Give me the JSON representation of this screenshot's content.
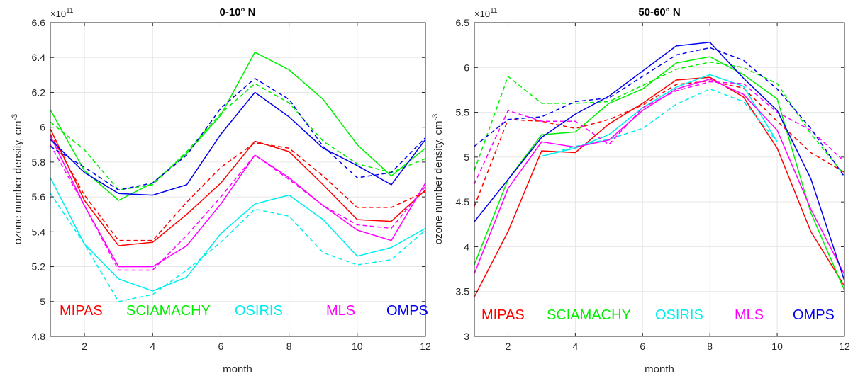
{
  "chart_data": [
    {
      "type": "line",
      "title": "0-10° N",
      "xlabel": "month",
      "ylabel_main": "ozone number density, cm",
      "ylabel_sup": "-3",
      "exponent_base": "×10",
      "exponent_power": "11",
      "xlim": [
        1,
        12
      ],
      "ylim": [
        4.8,
        6.6
      ],
      "xticks": [
        "2",
        "4",
        "6",
        "8",
        "10",
        "12"
      ],
      "yticks": [
        "4.8",
        "5",
        "5.2",
        "5.4",
        "5.6",
        "5.8",
        "6",
        "6.2",
        "6.4",
        "6.6"
      ],
      "grid": true,
      "legend_placement": "bottom",
      "x": [
        1,
        2,
        3,
        4,
        5,
        6,
        7,
        8,
        9,
        10,
        11,
        12
      ],
      "series": [
        {
          "name": "MIPAS",
          "color": "#ff0000",
          "style": "solid",
          "values": [
            5.99,
            5.58,
            5.32,
            5.34,
            5.5,
            5.68,
            5.92,
            5.86,
            5.67,
            5.47,
            5.46,
            5.64
          ]
        },
        {
          "name": "MIPAS",
          "color": "#ff0000",
          "style": "dashed",
          "values": [
            5.96,
            5.61,
            5.35,
            5.35,
            5.57,
            5.77,
            5.91,
            5.88,
            5.72,
            5.54,
            5.54,
            5.63
          ]
        },
        {
          "name": "SCIAMACHY",
          "color": "#00ee00",
          "style": "solid",
          "values": [
            6.1,
            5.75,
            5.58,
            5.68,
            5.85,
            6.07,
            6.43,
            6.33,
            6.16,
            5.9,
            5.72,
            5.88
          ]
        },
        {
          "name": "SCIAMACHY",
          "color": "#00ee00",
          "style": "dashed",
          "values": [
            6.03,
            5.87,
            5.64,
            5.67,
            5.86,
            6.08,
            6.25,
            6.14,
            5.92,
            5.79,
            5.74,
            5.82
          ]
        },
        {
          "name": "OSIRIS",
          "color": "#00eeee",
          "style": "solid",
          "values": [
            5.71,
            5.33,
            5.13,
            5.06,
            5.14,
            5.39,
            5.56,
            5.61,
            5.47,
            5.26,
            5.31,
            5.42
          ]
        },
        {
          "name": "OSIRIS",
          "color": "#00eeee",
          "style": "dashed",
          "values": [
            5.62,
            5.33,
            5.0,
            5.04,
            5.18,
            5.34,
            5.53,
            5.49,
            5.28,
            5.21,
            5.24,
            5.41
          ]
        },
        {
          "name": "MLS",
          "color": "#ff00ff",
          "style": "solid",
          "values": [
            5.95,
            5.55,
            5.2,
            5.2,
            5.32,
            5.56,
            5.84,
            5.71,
            5.55,
            5.41,
            5.35,
            5.68
          ]
        },
        {
          "name": "MLS",
          "color": "#ff00ff",
          "style": "dashed",
          "values": [
            5.9,
            5.55,
            5.18,
            5.18,
            5.38,
            5.6,
            5.84,
            5.7,
            5.55,
            5.44,
            5.42,
            5.66
          ]
        },
        {
          "name": "OMPS",
          "color": "#0000ee",
          "style": "solid",
          "values": [
            5.93,
            5.74,
            5.62,
            5.61,
            5.67,
            5.96,
            6.2,
            6.06,
            5.88,
            5.78,
            5.67,
            5.93
          ]
        },
        {
          "name": "OMPS",
          "color": "#0000ee",
          "style": "dashed",
          "values": [
            5.89,
            5.77,
            5.64,
            5.68,
            5.84,
            6.11,
            6.28,
            6.16,
            5.89,
            5.71,
            5.74,
            5.94
          ]
        }
      ],
      "legend": [
        {
          "label": "MIPAS",
          "color": "#ff0000"
        },
        {
          "label": "SCIAMACHY",
          "color": "#00ee00"
        },
        {
          "label": "OSIRIS",
          "color": "#00eeee"
        },
        {
          "label": "MLS",
          "color": "#ff00ff"
        },
        {
          "label": "OMPS",
          "color": "#0000ee"
        }
      ]
    },
    {
      "type": "line",
      "title": "50-60° N",
      "xlabel": "month",
      "ylabel_main": "ozone number density, cm",
      "ylabel_sup": "-3",
      "exponent_base": "×10",
      "exponent_power": "11",
      "xlim": [
        1,
        12
      ],
      "ylim": [
        3,
        6.5
      ],
      "xticks": [
        "2",
        "4",
        "6",
        "8",
        "10",
        "12"
      ],
      "yticks": [
        "3",
        "3.5",
        "4",
        "4.5",
        "5",
        "5.5",
        "6",
        "6.5"
      ],
      "grid": true,
      "legend_placement": "bottom",
      "x": [
        1,
        2,
        3,
        4,
        5,
        6,
        7,
        8,
        9,
        10,
        11,
        12
      ],
      "series": [
        {
          "name": "MIPAS",
          "color": "#ff0000",
          "style": "solid",
          "values": [
            3.44,
            4.17,
            5.07,
            5.05,
            5.37,
            5.6,
            5.86,
            5.89,
            5.67,
            5.1,
            4.17,
            3.56
          ]
        },
        {
          "name": "MIPAS",
          "color": "#ff0000",
          "style": "dashed",
          "values": [
            4.45,
            5.42,
            5.4,
            5.32,
            5.42,
            5.58,
            5.81,
            5.85,
            5.77,
            5.4,
            5.05,
            4.83
          ]
        },
        {
          "name": "SCIAMACHY",
          "color": "#00ee00",
          "style": "solid",
          "values": [
            3.8,
            4.75,
            5.25,
            5.28,
            5.6,
            5.76,
            6.05,
            6.12,
            5.92,
            5.65,
            4.38,
            3.51
          ]
        },
        {
          "name": "SCIAMACHY",
          "color": "#00ee00",
          "style": "dashed",
          "values": [
            4.85,
            5.9,
            5.6,
            5.6,
            5.62,
            5.8,
            5.98,
            6.06,
            6.0,
            5.82,
            5.26,
            4.8
          ]
        },
        {
          "name": "OSIRIS",
          "color": "#00eeee",
          "style": "solid",
          "values": [
            null,
            null,
            5.01,
            5.1,
            5.25,
            5.55,
            5.78,
            5.92,
            5.79,
            5.17,
            null,
            null
          ]
        },
        {
          "name": "OSIRIS",
          "color": "#00eeee",
          "style": "dashed",
          "values": [
            null,
            null,
            5.01,
            5.12,
            5.2,
            5.32,
            5.59,
            5.76,
            5.62,
            5.17,
            null,
            null
          ]
        },
        {
          "name": "MLS",
          "color": "#ff00ff",
          "style": "solid",
          "values": [
            3.7,
            4.65,
            5.17,
            5.11,
            5.19,
            5.52,
            5.76,
            5.87,
            5.7,
            5.3,
            4.42,
            3.69
          ]
        },
        {
          "name": "MLS",
          "color": "#ff00ff",
          "style": "dashed",
          "values": [
            4.7,
            5.52,
            5.4,
            5.4,
            5.14,
            5.55,
            5.74,
            5.84,
            5.82,
            5.5,
            5.3,
            4.95
          ]
        },
        {
          "name": "OMPS",
          "color": "#0000ee",
          "style": "solid",
          "values": [
            4.28,
            4.75,
            5.22,
            5.48,
            5.68,
            5.96,
            6.24,
            6.28,
            5.88,
            5.52,
            4.76,
            3.62
          ]
        },
        {
          "name": "OMPS",
          "color": "#0000ee",
          "style": "dashed",
          "values": [
            5.12,
            5.42,
            5.45,
            5.62,
            5.66,
            5.9,
            6.14,
            6.22,
            6.08,
            5.76,
            5.32,
            4.78
          ]
        }
      ],
      "legend": [
        {
          "label": "MIPAS",
          "color": "#ff0000"
        },
        {
          "label": "SCIAMACHY",
          "color": "#00ee00"
        },
        {
          "label": "OSIRIS",
          "color": "#00eeee"
        },
        {
          "label": "MLS",
          "color": "#ff00ff"
        },
        {
          "label": "OMPS",
          "color": "#0000ee"
        }
      ]
    }
  ]
}
